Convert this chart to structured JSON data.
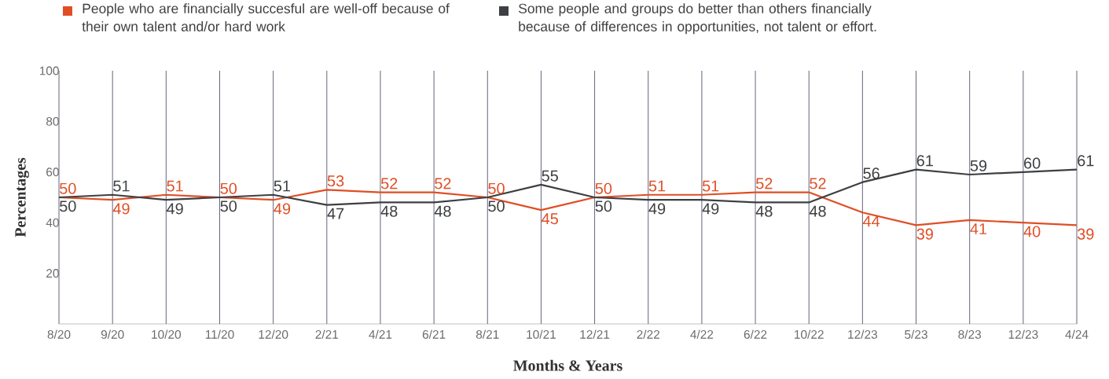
{
  "chart_data": {
    "type": "line",
    "xlabel": "Months & Years",
    "ylabel": "Percentages",
    "categories": [
      "8/20",
      "9/20",
      "10/20",
      "11/20",
      "12/20",
      "2/21",
      "4/21",
      "6/21",
      "8/21",
      "10/21",
      "12/21",
      "2/22",
      "4/22",
      "6/22",
      "10/22",
      "12/23",
      "5/23",
      "8/23",
      "12/23",
      "4/24"
    ],
    "series": [
      {
        "name": "People who are financially succesful are well-off because of their own talent and/or hard work",
        "color": "#e04e25",
        "values": [
          50,
          49,
          51,
          50,
          49,
          53,
          52,
          52,
          50,
          45,
          50,
          51,
          51,
          52,
          52,
          44,
          39,
          41,
          40,
          39
        ]
      },
      {
        "name": "Some people and groups do better than others financially because of differences in opportunities, not talent or effort.",
        "color": "#3d3f42",
        "values": [
          50,
          51,
          49,
          50,
          51,
          47,
          48,
          48,
          50,
          55,
          50,
          49,
          49,
          48,
          48,
          56,
          61,
          59,
          60,
          61
        ]
      }
    ],
    "ylim": [
      0,
      100
    ],
    "yticks": [
      20,
      40,
      60,
      80,
      100
    ],
    "grid": "x",
    "legend": "top left",
    "data_labels": true,
    "marker": "none",
    "line_style": "solid"
  }
}
